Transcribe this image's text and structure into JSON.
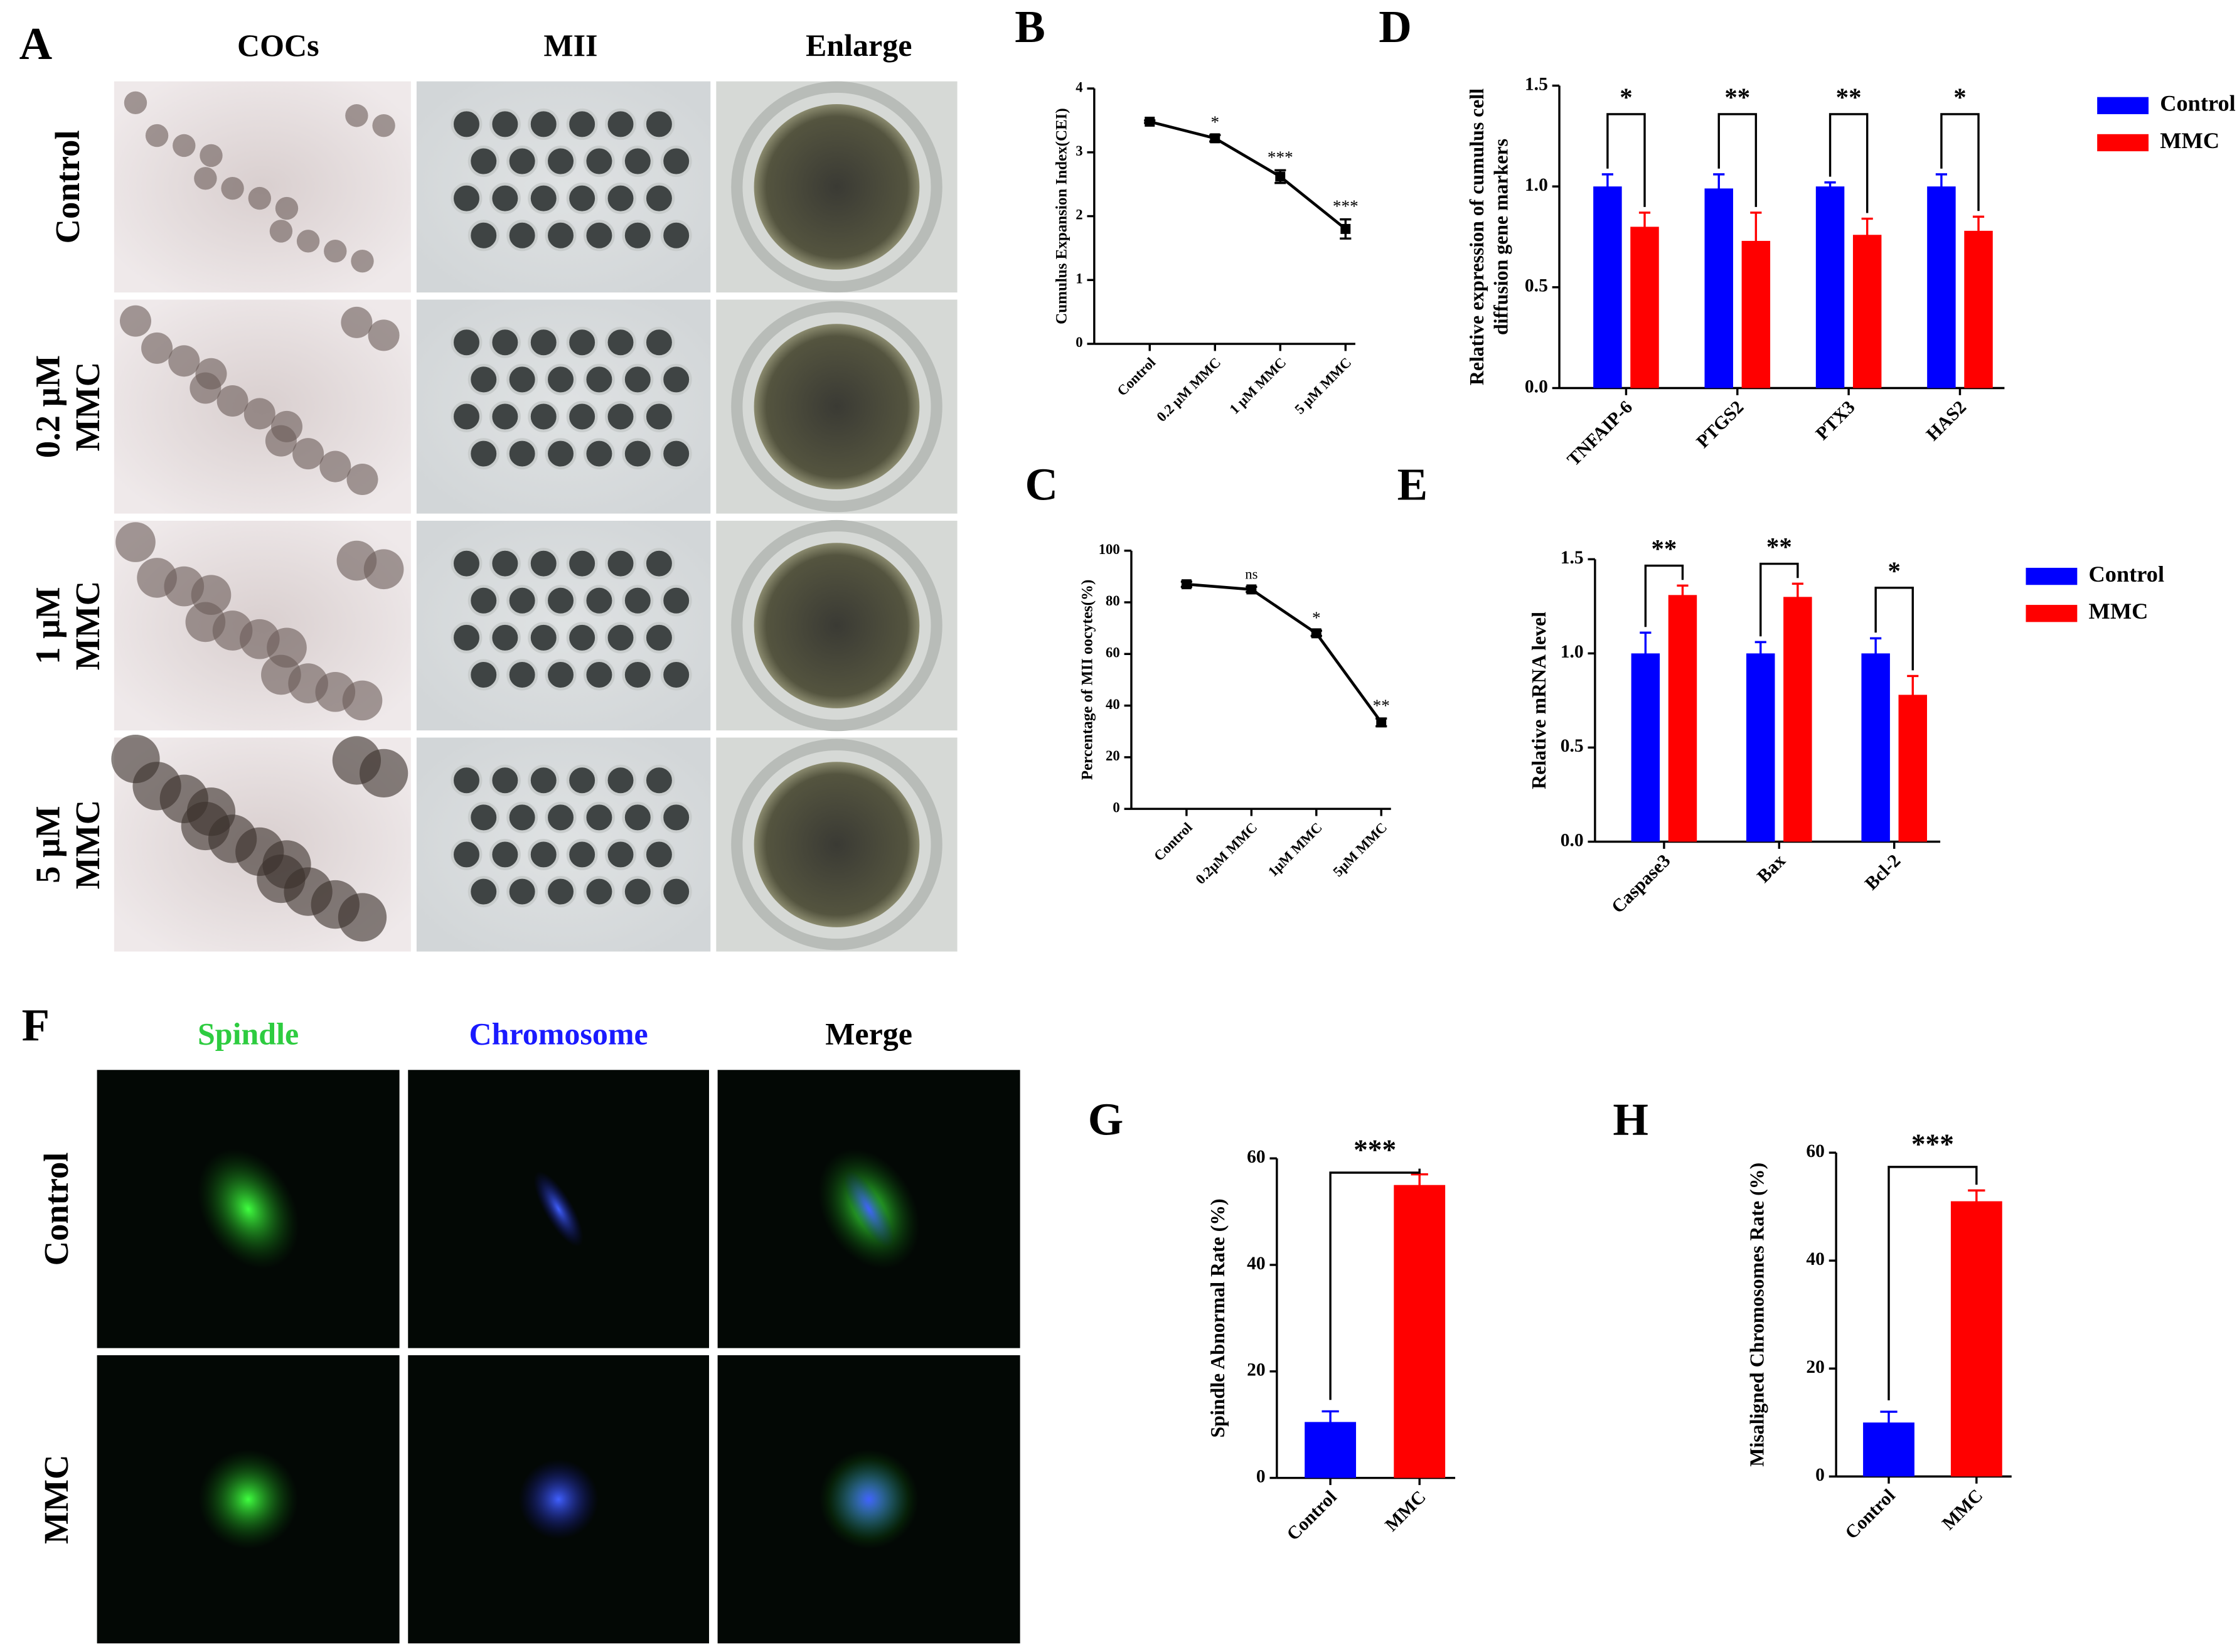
{
  "panel_a": {
    "letter": "A",
    "columns": [
      "COCs",
      "MII",
      "Enlarge"
    ],
    "rows": [
      [
        "Control"
      ],
      [
        "0.2 μM",
        "MMC"
      ],
      [
        "1 μM",
        "MMC"
      ],
      [
        "5 μM",
        "MMC"
      ]
    ]
  },
  "panel_f": {
    "letter": "F",
    "columns": [
      "Spindle",
      "Chromosome",
      "Merge"
    ],
    "column_colors": [
      "#2ecc40",
      "#1a1aff",
      "#000000"
    ],
    "rows": [
      "Control",
      "MMC"
    ]
  },
  "chart_data": [
    {
      "type": "line",
      "panel": "B",
      "ylabel": [
        "Cumulus Expansion Index(CEI)"
      ],
      "categories": [
        "Control",
        "0.2 μM MMC",
        "1 μM MMC",
        "5 μM MMC"
      ],
      "values": [
        3.48,
        3.22,
        2.62,
        1.8
      ],
      "errors": [
        0.02,
        0.05,
        0.1,
        0.15
      ],
      "significance": [
        null,
        "*",
        "***",
        "***"
      ],
      "color": "#000000",
      "ylim": [
        0,
        4
      ],
      "yticks": [
        0,
        1,
        2,
        3,
        4
      ]
    },
    {
      "type": "line",
      "panel": "C",
      "ylabel": [
        "Percentage of MII oocytes(%)"
      ],
      "categories": [
        "Control",
        "0.2μM MMC",
        "1μM MMC",
        "5μM MMC"
      ],
      "values": [
        87,
        85,
        68,
        33.5
      ],
      "errors": [
        1,
        1,
        1,
        1.5
      ],
      "significance": [
        null,
        "ns",
        "*",
        "**"
      ],
      "color": "#000000",
      "ylim": [
        0,
        100
      ],
      "yticks": [
        0,
        20,
        40,
        60,
        80,
        100
      ]
    },
    {
      "type": "grouped_bar",
      "panel": "D",
      "ylabel": [
        "Relative expression of cumulus cell",
        "diffusion gene markers"
      ],
      "categories": [
        "TNFAIP-6",
        "PTGS2",
        "PTX3",
        "HAS2"
      ],
      "series": [
        {
          "name": "Control",
          "color": "#0000ff",
          "values": [
            1.0,
            0.99,
            1.0,
            1.0
          ],
          "errors": [
            0.06,
            0.07,
            0.02,
            0.06
          ]
        },
        {
          "name": "MMC",
          "color": "#ff0000",
          "values": [
            0.8,
            0.73,
            0.76,
            0.78
          ],
          "errors": [
            0.07,
            0.14,
            0.08,
            0.07
          ]
        }
      ],
      "significance": [
        "*",
        "**",
        "**",
        "*"
      ],
      "ylim": [
        0,
        1.5
      ],
      "yticks": [
        {
          "value": 0,
          "label": "0.0"
        },
        {
          "value": 0.5,
          "label": "0.5"
        },
        {
          "value": 1,
          "label": "1.0"
        },
        {
          "value": 1.5,
          "label": "1.5"
        }
      ],
      "legend": "right"
    },
    {
      "type": "grouped_bar",
      "panel": "E",
      "ylabel": [
        "Relative mRNA level"
      ],
      "categories": [
        "Caspase3",
        "Bax",
        "Bcl-2"
      ],
      "series": [
        {
          "name": "Control",
          "color": "#0000ff",
          "values": [
            1.0,
            1.0,
            1.0
          ],
          "errors": [
            0.11,
            0.06,
            0.08
          ]
        },
        {
          "name": "MMC",
          "color": "#ff0000",
          "values": [
            1.31,
            1.3,
            0.78
          ],
          "errors": [
            0.05,
            0.07,
            0.1
          ]
        }
      ],
      "significance": [
        "**",
        "**",
        "*"
      ],
      "ylim": [
        0,
        1.5
      ],
      "yticks": [
        {
          "value": 0,
          "label": "0.0"
        },
        {
          "value": 0.5,
          "label": "0.5"
        },
        {
          "value": 1,
          "label": "1.0"
        },
        {
          "value": 1.5,
          "label": "1.5"
        }
      ],
      "legend": "right"
    },
    {
      "type": "bar",
      "panel": "G",
      "ylabel": [
        "Spindle Abnormal Rate (%)"
      ],
      "categories": [
        "Control",
        "MMC"
      ],
      "values": [
        10.5,
        55
      ],
      "errors": [
        2,
        2
      ],
      "colors": [
        "#0000ff",
        "#ff0000"
      ],
      "significance": "***",
      "ylim": [
        0,
        60
      ],
      "yticks": [
        0,
        20,
        40,
        60
      ]
    },
    {
      "type": "bar",
      "panel": "H",
      "ylabel": [
        "Misaligned Chromosomes Rate (%)"
      ],
      "categories": [
        "Control",
        "MMC"
      ],
      "values": [
        10,
        51
      ],
      "errors": [
        2,
        2
      ],
      "colors": [
        "#0000ff",
        "#ff0000"
      ],
      "significance": "***",
      "ylim": [
        0,
        60
      ],
      "yticks": [
        0,
        20,
        40,
        60
      ]
    }
  ]
}
